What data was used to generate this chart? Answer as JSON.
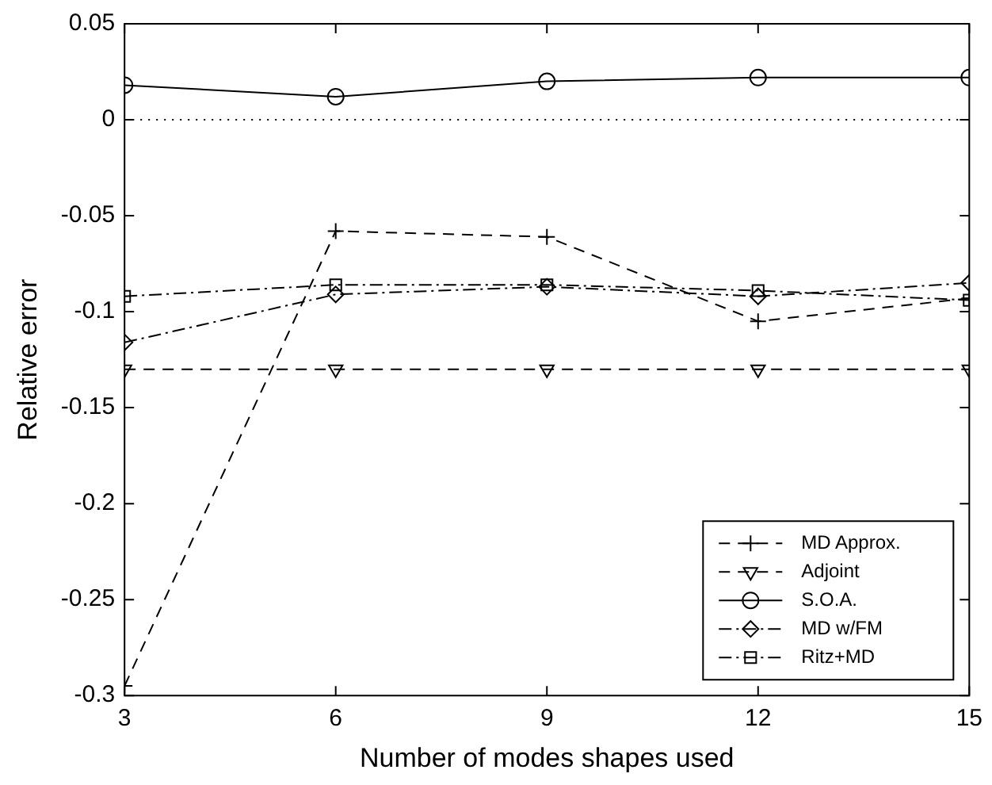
{
  "chart_data": {
    "type": "line",
    "xlabel": "Number of modes shapes used",
    "ylabel": "Relative error",
    "x": [
      3,
      6,
      9,
      12,
      15
    ],
    "series": [
      {
        "name": "MD Approx.",
        "color": "#000000",
        "marker": "cross",
        "line_style": "dashed",
        "values": [
          -0.295,
          -0.058,
          -0.061,
          -0.105,
          -0.093
        ]
      },
      {
        "name": "Adjoint",
        "color": "#000000",
        "marker": "triangle",
        "line_style": "dashed",
        "values": [
          -0.13,
          -0.13,
          -0.13,
          -0.13,
          -0.13
        ]
      },
      {
        "name": "S.O.A.",
        "color": "#000000",
        "marker": "circle",
        "line_style": "solid",
        "values": [
          0.018,
          0.012,
          0.02,
          0.022,
          0.022
        ]
      },
      {
        "name": "MD w/FM",
        "color": "#000000",
        "marker": "diamond",
        "line_style": "dashdot",
        "values": [
          -0.116,
          -0.091,
          -0.087,
          -0.092,
          -0.085
        ]
      },
      {
        "name": "Ritz+MD",
        "color": "#000000",
        "marker": "square",
        "line_style": "dashdot",
        "values": [
          -0.092,
          -0.086,
          -0.086,
          -0.089,
          -0.094
        ]
      }
    ],
    "xlim": [
      3,
      15
    ],
    "xticks": [
      3,
      6,
      9,
      12,
      15
    ],
    "ylim": [
      -0.3,
      0.05
    ],
    "yticks": [
      -0.3,
      -0.25,
      -0.2,
      -0.15,
      -0.1,
      -0.05,
      0,
      0.05
    ],
    "ref_lines": [
      {
        "axis": "y",
        "value": 0,
        "color": "#000000",
        "line_style": "dotted"
      }
    ],
    "grid": false,
    "legend": "bottom right"
  }
}
